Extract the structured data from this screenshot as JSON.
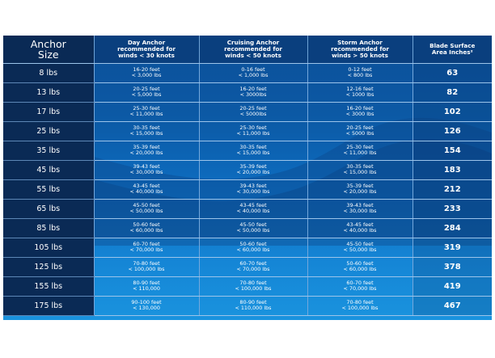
{
  "headers": [
    {
      "lines": [
        "Anchor",
        "Size"
      ]
    },
    {
      "lines": [
        "Day Anchor",
        "recommended for",
        "winds < 30 knots"
      ]
    },
    {
      "lines": [
        "Cruising Anchor",
        "recommended for",
        "winds < 50 knots"
      ]
    },
    {
      "lines": [
        "Storm Anchor",
        "recommended for",
        "winds > 50 knots"
      ]
    },
    {
      "lines": [
        "Blade Surface",
        "Area Inches²"
      ]
    }
  ],
  "rows": [
    {
      "size": "8 lbs",
      "day": [
        "16-20 feet",
        "< 3,000 lbs"
      ],
      "cruising": [
        "0-16 feet",
        "< 1,000 lbs"
      ],
      "storm": [
        "0-12 feet",
        "< 800 lbs"
      ],
      "area": "63"
    },
    {
      "size": "13 lbs",
      "day": [
        "20-25 feet",
        "< 5,000 lbs"
      ],
      "cruising": [
        "16-20 feet",
        "< 3000lbs"
      ],
      "storm": [
        "12-16 feet",
        "< 1000 lbs"
      ],
      "area": "82"
    },
    {
      "size": "17 lbs",
      "day": [
        "25-30 feet",
        "< 11,000 lbs"
      ],
      "cruising": [
        "20-25 feet",
        "< 5000lbs"
      ],
      "storm": [
        "16-20 feet",
        "< 3000 lbs"
      ],
      "area": "102"
    },
    {
      "size": "25 lbs",
      "day": [
        "30-35 feet",
        "< 15,000 lbs"
      ],
      "cruising": [
        "25-30 feet",
        "< 11,000 lbs"
      ],
      "storm": [
        "20-25 feet",
        "< 5000 lbs"
      ],
      "area": "126"
    },
    {
      "size": "35 lbs",
      "day": [
        "35-39 feet",
        "< 20,000 lbs"
      ],
      "cruising": [
        "30-35 feet",
        "< 15,000 lbs"
      ],
      "storm": [
        "25-30 feet",
        "< 11,000 lbs"
      ],
      "area": "154"
    },
    {
      "size": "45 lbs",
      "day": [
        "39-43 feet",
        "< 30,000 lbs"
      ],
      "cruising": [
        "35-39 feet",
        "< 20,000 lbs"
      ],
      "storm": [
        "30-35 feet",
        "< 15,000 lbs"
      ],
      "area": "183"
    },
    {
      "size": "55 lbs",
      "day": [
        "43-45 feet",
        "< 40,000 lbs"
      ],
      "cruising": [
        "39-43 feet",
        "< 30,000 lbs"
      ],
      "storm": [
        "35-39 feet",
        "< 20,000 lbs"
      ],
      "area": "212"
    },
    {
      "size": "65 lbs",
      "day": [
        "45-50 feet",
        "< 50,000 lbs"
      ],
      "cruising": [
        "43-45 feet",
        "< 40,000 lbs"
      ],
      "storm": [
        "39-43 feet",
        "< 30,000 lbs"
      ],
      "area": "233"
    },
    {
      "size": "85 lbs",
      "day": [
        "50-60 feet",
        "< 60,000 lbs"
      ],
      "cruising": [
        "45-50 feet",
        "< 50,000 lbs"
      ],
      "storm": [
        "43-45 feet",
        "< 40,000 lbs"
      ],
      "area": "284"
    },
    {
      "size": "105 lbs",
      "day": [
        "60-70 feet",
        "< 70,000 lbs"
      ],
      "cruising": [
        "50-60 feet",
        "< 60,000 lbs"
      ],
      "storm": [
        "45-50 feet",
        "< 50,000 lbs"
      ],
      "area": "319"
    },
    {
      "size": "125 lbs",
      "day": [
        "70-80 feet",
        "< 100,000 lbs"
      ],
      "cruising": [
        "60-70 feet",
        "< 70,000 lbs"
      ],
      "storm": [
        "50-60 feet",
        "< 60,000 lbs"
      ],
      "area": "378"
    },
    {
      "size": "155 lbs",
      "day": [
        "80-90 feet",
        "< 110,000"
      ],
      "cruising": [
        "70-80 feet",
        "< 100,000 lbs"
      ],
      "storm": [
        "60-70 feet",
        "< 70,000 lbs"
      ],
      "area": "419"
    },
    {
      "size": "175 lbs",
      "day": [
        "90-100 feet",
        "< 130,000"
      ],
      "cruising": [
        "80-90 feet",
        "< 110,000 lbs"
      ],
      "storm": [
        "70-80 feet",
        "< 100,000 lbs"
      ],
      "area": "467"
    }
  ]
}
